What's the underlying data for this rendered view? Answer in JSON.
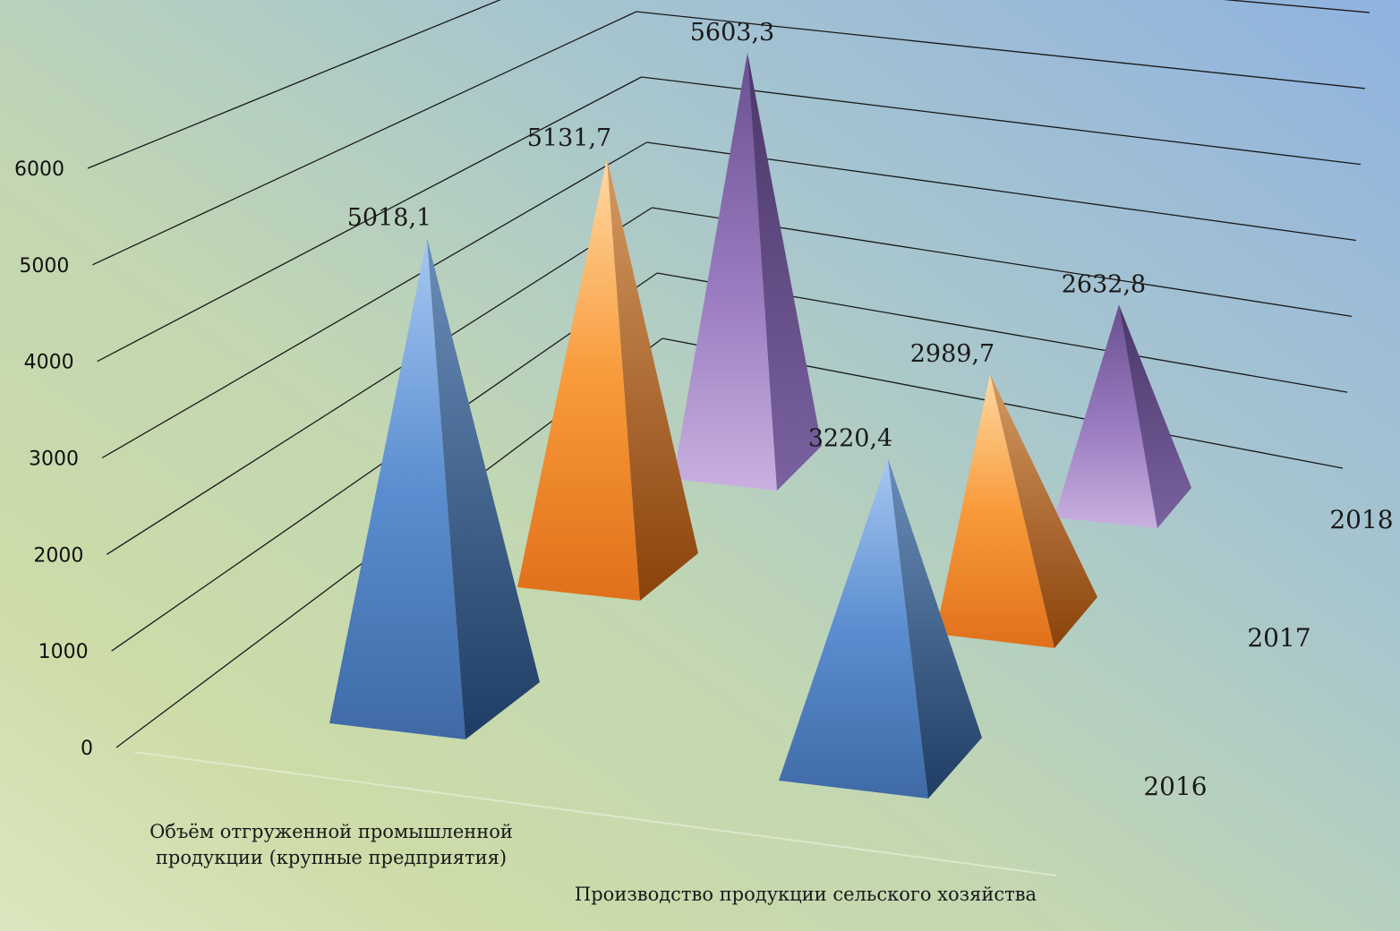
{
  "chart_data": {
    "type": "bar",
    "subtype": "3d-pyramid",
    "title": "",
    "xlabel": "",
    "ylabel": "",
    "ylim": [
      0,
      6000
    ],
    "yticks": [
      "0",
      "1000",
      "2000",
      "3000",
      "4000",
      "5000",
      "6000"
    ],
    "grid": true,
    "legend": "none",
    "categories": [
      "Объём отгруженной промышленной продукции (крупные предприятия)",
      "Производство продукции сельского хозяйства"
    ],
    "series": [
      {
        "name": "2016",
        "values": [
          5018.1,
          3220.4
        ],
        "labels": [
          "5018,1",
          "3220,4"
        ]
      },
      {
        "name": "2017",
        "values": [
          5131.7,
          2989.7
        ],
        "labels": [
          "5131,7",
          "2989,7"
        ]
      },
      {
        "name": "2018",
        "values": [
          5603.3,
          2632.8
        ],
        "labels": [
          "5603,3",
          "2632,8"
        ]
      }
    ],
    "colors": {
      "2016": {
        "light": "#8db4e6",
        "dark": "#2b4e7f",
        "mid": "#4f7fc0"
      },
      "2017": {
        "light": "#ffc98a",
        "dark": "#a24e0f",
        "mid": "#f38a2a"
      },
      "2018": {
        "light": "#c7addd",
        "dark": "#4e3a6e",
        "mid": "#8a68ad"
      }
    }
  }
}
